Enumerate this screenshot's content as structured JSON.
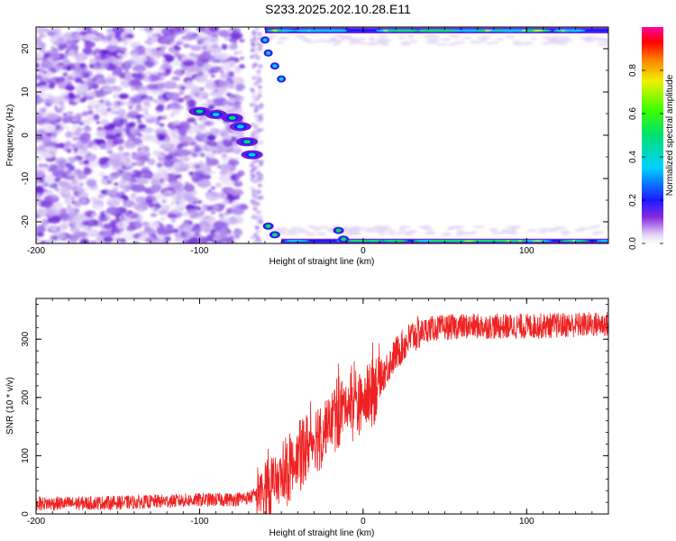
{
  "page_title": "S233.2025.202.10.28.E11",
  "chart_data": [
    {
      "type": "heatmap",
      "title": "",
      "xlabel": "Height of straight line (km)",
      "ylabel": "Frequency (Hz)",
      "xlim": [
        -200,
        150
      ],
      "ylim": [
        -25,
        25
      ],
      "x_ticks": [
        -200,
        -100,
        0,
        100
      ],
      "y_ticks": [
        -20,
        -10,
        0,
        10,
        20
      ],
      "colorbar": {
        "label": "Normalized spectral amplitude",
        "range": [
          0,
          1
        ],
        "ticks": [
          "0.0",
          "0.2",
          "0.4",
          "0.6",
          "0.8"
        ]
      },
      "regions": [
        {
          "region": "speckle-noise",
          "x_range": [
            -200,
            -80
          ],
          "y_range": [
            -25,
            25
          ],
          "amplitude": 0.05
        },
        {
          "region": "strong-band-top",
          "x_range": [
            -60,
            150
          ],
          "y_range": [
            23,
            25
          ],
          "amplitude": 0.4
        },
        {
          "region": "strong-band-bottom",
          "x_range": [
            -50,
            150
          ],
          "y_range": [
            -25,
            -23
          ],
          "amplitude": 0.3
        },
        {
          "region": "diagonal-trace",
          "x_range": [
            -100,
            -60
          ],
          "y_range": [
            -5,
            6
          ],
          "amplitude": 0.35
        }
      ]
    },
    {
      "type": "line",
      "title": "",
      "xlabel": "Height of straight line (km)",
      "ylabel": "SNR (10 * v/v)",
      "xlim": [
        -200,
        150
      ],
      "ylim": [
        0,
        370
      ],
      "x_ticks": [
        -200,
        -100,
        0,
        100
      ],
      "y_ticks": [
        0,
        100,
        200,
        300
      ],
      "series": [
        {
          "color": "#ee2222",
          "x": [
            -200,
            -180,
            -160,
            -140,
            -120,
            -100,
            -80,
            -70,
            -60,
            -50,
            -40,
            -30,
            -20,
            -10,
            0,
            10,
            20,
            30,
            40,
            60,
            80,
            100,
            120,
            150
          ],
          "y": [
            18,
            18,
            19,
            20,
            22,
            24,
            25,
            28,
            40,
            60,
            95,
            130,
            160,
            190,
            190,
            230,
            275,
            305,
            318,
            322,
            322,
            322,
            324,
            326
          ]
        }
      ]
    }
  ]
}
